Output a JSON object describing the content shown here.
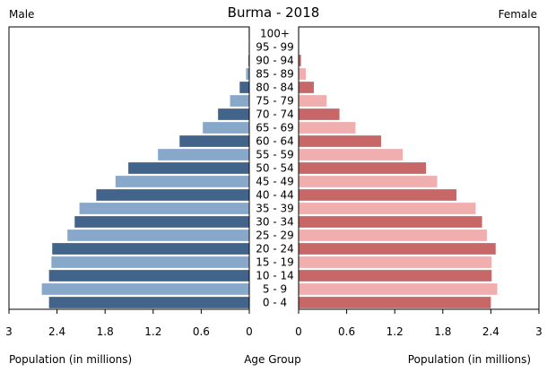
{
  "chart_data": {
    "type": "bar",
    "title": "Burma - 2018",
    "left_label": "Male",
    "right_label": "Female",
    "center_label": "Age Group",
    "left_axis_title": "Population (in millions)",
    "right_axis_title": "Population (in millions)",
    "xlim": [
      0,
      3
    ],
    "x_ticks_left": [
      "3",
      "2.4",
      "1.8",
      "1.2",
      "0.6",
      "0"
    ],
    "x_ticks_right": [
      "0",
      "0.6",
      "1.2",
      "1.8",
      "2.4",
      "3"
    ],
    "tick_values_left": [
      3,
      2.4,
      1.8,
      1.2,
      0.6,
      0
    ],
    "tick_values_right": [
      0,
      0.6,
      1.2,
      1.8,
      2.4,
      3
    ],
    "categories": [
      "0 - 4",
      "5 - 9",
      "10 - 14",
      "15 - 19",
      "20 - 24",
      "25 - 29",
      "30 - 34",
      "35 - 39",
      "40 - 44",
      "45 - 49",
      "50 - 54",
      "55 - 59",
      "60 - 64",
      "65 - 69",
      "70 - 74",
      "75 - 79",
      "80 - 84",
      "85 - 89",
      "90 - 94",
      "95 - 99",
      "100+"
    ],
    "series": [
      {
        "name": "Male",
        "values": [
          2.5,
          2.59,
          2.5,
          2.47,
          2.46,
          2.27,
          2.18,
          2.12,
          1.91,
          1.67,
          1.51,
          1.14,
          0.87,
          0.58,
          0.39,
          0.24,
          0.12,
          0.04,
          0.01,
          0.005,
          0.002
        ],
        "colors": [
          "#43648a",
          "#88a8c9"
        ]
      },
      {
        "name": "Female",
        "values": [
          2.4,
          2.48,
          2.41,
          2.41,
          2.46,
          2.35,
          2.29,
          2.21,
          1.97,
          1.73,
          1.59,
          1.3,
          1.03,
          0.71,
          0.51,
          0.35,
          0.19,
          0.09,
          0.03,
          0.005,
          0.002
        ],
        "colors": [
          "#c86767",
          "#f1aeae"
        ]
      }
    ],
    "grid": false
  }
}
